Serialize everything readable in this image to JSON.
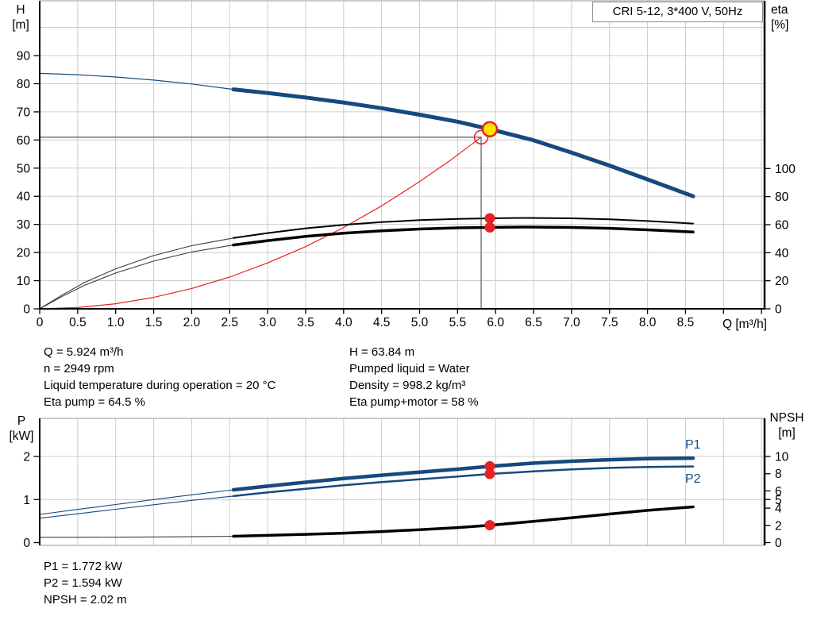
{
  "title_box": {
    "text": "CRI 5-12, 3*400 V, 50Hz"
  },
  "axis_labels": {
    "h": [
      "H",
      "[m]"
    ],
    "eta": [
      "eta",
      "[%]"
    ],
    "q": "Q [m³/h]",
    "p": [
      "P",
      "[kW]"
    ],
    "npsh": [
      "NPSH",
      "[m]"
    ]
  },
  "curve_labels": {
    "p1": "P1",
    "p2": "P2"
  },
  "info_top_left": [
    "Q = 5.924 m³/h",
    "n = 2949 rpm",
    "Liquid temperature during operation = 20 °C",
    "Eta pump = 64.5 %"
  ],
  "info_top_right": [
    "H = 63.84 m",
    "Pumped liquid = Water",
    "Density = 998.2 kg/m³",
    "Eta pump+motor = 58 %"
  ],
  "info_bottom": [
    "P1 = 1.772 kW",
    "P2 = 1.594 kW",
    "NPSH = 2.02 m"
  ],
  "colors": {
    "curve_blue": "#17497E",
    "red": "#E62222",
    "yellow": "#FFE400",
    "black": "#000000",
    "thin_dark": "#3C3C3C",
    "grid": "#CCCCCC",
    "border_gray": "#ADADAD",
    "crosshair": "#666666",
    "label_blue": "#17497E"
  },
  "chart_data": [
    {
      "id": "qh-eta-chart",
      "type": "line",
      "title": "CRI 5-12, 3*400 V, 50Hz",
      "x_axis": {
        "label": "Q [m³/h]",
        "min": 0,
        "max": 9.54,
        "tick_step": 0.5,
        "tick_labels": [
          "0",
          "0.5",
          "1.0",
          "1.5",
          "2.0",
          "2.5",
          "3.0",
          "3.5",
          "4.0",
          "4.5",
          "5.0",
          "5.5",
          "6.0",
          "6.5",
          "7.0",
          "7.5",
          "8.0",
          "8.5"
        ]
      },
      "y_left_axis": {
        "label": "H [m]",
        "min": 0,
        "max": 109.5,
        "ticks": [
          0,
          10,
          20,
          30,
          40,
          50,
          60,
          70,
          80,
          90
        ],
        "gridlines": [
          10,
          20,
          30,
          40,
          50,
          60,
          70,
          80,
          90,
          100
        ]
      },
      "y_right_axis": {
        "label": "eta [%]",
        "min": 0,
        "max": 219,
        "ticks": [
          0,
          20,
          40,
          60,
          80,
          100
        ]
      },
      "duty_point": {
        "Q": 5.924,
        "H": 63.84,
        "eta_pump": 64.5,
        "eta_pump_motor": 58
      },
      "crosshair": {
        "q": 5.81,
        "axis": "H",
        "value": 61.0
      },
      "series": [
        {
          "name": "pump-curve-low-flow",
          "axis": "H",
          "color": "curve_blue",
          "width": 1.2,
          "points": [
            [
              0,
              83.7
            ],
            [
              0.5,
              83.2
            ],
            [
              1,
              82.4
            ],
            [
              1.5,
              81.3
            ],
            [
              2,
              79.9
            ],
            [
              2.55,
              78.0
            ]
          ]
        },
        {
          "name": "pump-curve",
          "axis": "H",
          "color": "curve_blue",
          "width": 5,
          "points": [
            [
              2.55,
              78.0
            ],
            [
              3,
              76.7
            ],
            [
              3.5,
              75.1
            ],
            [
              4,
              73.3
            ],
            [
              4.5,
              71.3
            ],
            [
              5,
              69.0
            ],
            [
              5.5,
              66.5
            ],
            [
              5.93,
              63.84
            ],
            [
              6.5,
              59.9
            ],
            [
              7,
              55.5
            ],
            [
              7.5,
              50.9
            ],
            [
              8,
              46.0
            ],
            [
              8.6,
              40.0
            ]
          ]
        },
        {
          "name": "system-curve",
          "axis": "H",
          "color": "red",
          "width": 1.2,
          "points": [
            [
              0,
              0
            ],
            [
              0.5,
              0.45
            ],
            [
              1,
              1.81
            ],
            [
              1.5,
              4.07
            ],
            [
              2,
              7.23
            ],
            [
              2.5,
              11.3
            ],
            [
              3,
              16.3
            ],
            [
              3.5,
              22.1
            ],
            [
              4,
              28.9
            ],
            [
              4.5,
              36.6
            ],
            [
              5,
              45.2
            ],
            [
              5.4,
              52.7
            ],
            [
              5.81,
              61.0
            ]
          ]
        },
        {
          "name": "eta-pump-low-flow",
          "axis": "eta",
          "color": "thin_dark",
          "width": 1.1,
          "points": [
            [
              0,
              0
            ],
            [
              0.3,
              10
            ],
            [
              0.6,
              19
            ],
            [
              1,
              28.5
            ],
            [
              1.5,
              38
            ],
            [
              2,
              45
            ],
            [
              2.55,
              50.5
            ]
          ]
        },
        {
          "name": "eta-pump-curve",
          "axis": "eta",
          "color": "black",
          "width": 2,
          "points": [
            [
              2.55,
              50.5
            ],
            [
              3,
              54
            ],
            [
              3.5,
              57.4
            ],
            [
              4,
              59.9
            ],
            [
              4.5,
              61.8
            ],
            [
              5,
              63.2
            ],
            [
              5.5,
              64.1
            ],
            [
              5.93,
              64.5
            ],
            [
              6.4,
              64.8
            ],
            [
              7,
              64.5
            ],
            [
              7.5,
              63.8
            ],
            [
              8,
              62.6
            ],
            [
              8.6,
              60.8
            ]
          ]
        },
        {
          "name": "eta-pump-motor-low-flow",
          "axis": "eta",
          "color": "thin_dark",
          "width": 1.1,
          "points": [
            [
              0,
              0
            ],
            [
              0.3,
              9
            ],
            [
              0.6,
              17
            ],
            [
              1,
              25.5
            ],
            [
              1.5,
              34
            ],
            [
              2,
              40.5
            ],
            [
              2.55,
              45.5
            ]
          ]
        },
        {
          "name": "eta-pump-motor-curve",
          "axis": "eta",
          "color": "black",
          "width": 3.5,
          "points": [
            [
              2.55,
              45.5
            ],
            [
              3,
              48.6
            ],
            [
              3.5,
              51.6
            ],
            [
              4,
              53.9
            ],
            [
              4.5,
              55.6
            ],
            [
              5,
              56.9
            ],
            [
              5.5,
              57.7
            ],
            [
              5.93,
              58
            ],
            [
              6.4,
              58.3
            ],
            [
              7,
              58
            ],
            [
              7.5,
              57.4
            ],
            [
              8,
              56.3
            ],
            [
              8.6,
              54.7
            ]
          ]
        }
      ],
      "markers": [
        {
          "name": "requested-duty-point",
          "shape": "open-circle",
          "axis": "H",
          "q": 5.81,
          "value": 61.0,
          "r": 8.5,
          "stroke": "red"
        },
        {
          "name": "duty-point",
          "shape": "dot",
          "axis": "H",
          "q": 5.924,
          "value": 63.84,
          "r": 9,
          "fill": "yellow",
          "stroke": "red"
        },
        {
          "name": "eta-pump-duty-dot",
          "shape": "dot",
          "axis": "eta",
          "q": 5.924,
          "value": 64.5,
          "r": 6.5,
          "fill": "red"
        },
        {
          "name": "eta-pump-motor-duty-dot",
          "shape": "dot",
          "axis": "eta",
          "q": 5.924,
          "value": 58,
          "r": 6.5,
          "fill": "red"
        }
      ]
    },
    {
      "id": "power-npsh-chart",
      "type": "line",
      "x_axis": {
        "label": "Q [m³/h]",
        "min": 0,
        "max": 9.54,
        "tick_step": 0.5,
        "tick_labels": []
      },
      "y_left_axis": {
        "label": "P [kW]",
        "min": 0,
        "max": 2.87,
        "ticks": [
          0,
          1,
          2
        ],
        "gridlines": [
          1,
          2
        ]
      },
      "y_right_axis": {
        "label": "NPSH [m]",
        "min": 0,
        "max": 14.35,
        "ticks": [
          0,
          2,
          4,
          5,
          6,
          8,
          10
        ]
      },
      "duty_point": {
        "Q": 5.924,
        "P1": 1.772,
        "P2": 1.594,
        "NPSH": 2.02
      },
      "series": [
        {
          "name": "p1-low-flow",
          "axis": "P",
          "color": "curve_blue",
          "width": 1.1,
          "points": [
            [
              0,
              0.655
            ],
            [
              0.5,
              0.77
            ],
            [
              1,
              0.885
            ],
            [
              1.5,
              1.0
            ],
            [
              2,
              1.11
            ],
            [
              2.55,
              1.225
            ]
          ]
        },
        {
          "name": "p1-curve",
          "axis": "P",
          "color": "curve_blue",
          "width": 4.5,
          "points": [
            [
              2.55,
              1.225
            ],
            [
              3,
              1.31
            ],
            [
              3.5,
              1.4
            ],
            [
              4,
              1.49
            ],
            [
              4.5,
              1.565
            ],
            [
              5,
              1.635
            ],
            [
              5.5,
              1.705
            ],
            [
              5.93,
              1.772
            ],
            [
              6.5,
              1.845
            ],
            [
              7,
              1.89
            ],
            [
              7.5,
              1.925
            ],
            [
              8,
              1.95
            ],
            [
              8.6,
              1.962
            ]
          ]
        },
        {
          "name": "p2-low-flow",
          "axis": "P",
          "color": "curve_blue",
          "width": 1.1,
          "points": [
            [
              0,
              0.565
            ],
            [
              0.5,
              0.67
            ],
            [
              1,
              0.775
            ],
            [
              1.5,
              0.88
            ],
            [
              2,
              0.98
            ],
            [
              2.55,
              1.08
            ]
          ]
        },
        {
          "name": "p2-curve",
          "axis": "P",
          "color": "curve_blue",
          "width": 2.5,
          "points": [
            [
              2.55,
              1.08
            ],
            [
              3,
              1.165
            ],
            [
              3.5,
              1.25
            ],
            [
              4,
              1.33
            ],
            [
              4.5,
              1.405
            ],
            [
              5,
              1.47
            ],
            [
              5.5,
              1.535
            ],
            [
              5.93,
              1.594
            ],
            [
              6.5,
              1.655
            ],
            [
              7,
              1.7
            ],
            [
              7.5,
              1.735
            ],
            [
              8,
              1.755
            ],
            [
              8.6,
              1.767
            ]
          ]
        },
        {
          "name": "npsh-low-flow",
          "axis": "NPSH",
          "color": "thin_dark",
          "width": 1.1,
          "points": [
            [
              0,
              0.62
            ],
            [
              0.5,
              0.62
            ],
            [
              1,
              0.63
            ],
            [
              1.5,
              0.65
            ],
            [
              2,
              0.68
            ],
            [
              2.55,
              0.74
            ]
          ]
        },
        {
          "name": "npsh-curve",
          "axis": "NPSH",
          "color": "black",
          "width": 3.5,
          "points": [
            [
              2.55,
              0.74
            ],
            [
              3,
              0.84
            ],
            [
              3.5,
              0.96
            ],
            [
              4,
              1.1
            ],
            [
              4.5,
              1.28
            ],
            [
              5,
              1.5
            ],
            [
              5.5,
              1.74
            ],
            [
              5.93,
              2.02
            ],
            [
              6.5,
              2.46
            ],
            [
              7,
              2.88
            ],
            [
              7.5,
              3.32
            ],
            [
              8,
              3.74
            ],
            [
              8.6,
              4.15
            ]
          ]
        }
      ],
      "markers": [
        {
          "name": "p1-duty-dot",
          "shape": "dot",
          "axis": "P",
          "q": 5.924,
          "value": 1.772,
          "r": 6.5,
          "fill": "red"
        },
        {
          "name": "p2-duty-dot",
          "shape": "dot",
          "axis": "P",
          "q": 5.924,
          "value": 1.594,
          "r": 6.5,
          "fill": "red"
        },
        {
          "name": "npsh-duty-dot",
          "shape": "dot",
          "axis": "NPSH",
          "q": 5.924,
          "value": 2.02,
          "r": 6.5,
          "fill": "red"
        }
      ]
    }
  ]
}
